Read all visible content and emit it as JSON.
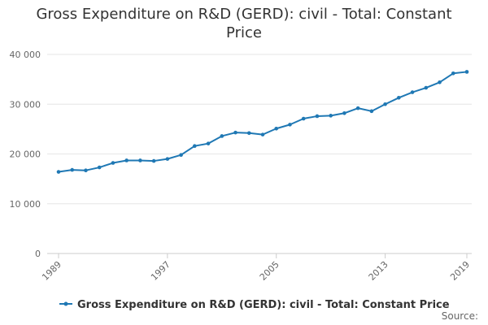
{
  "title": "Gross Expenditure on R&D (GERD): civil - Total: Constant Price",
  "source_label": "Source:",
  "chart_data": {
    "type": "line",
    "title": "Gross Expenditure on R&D (GERD): civil - Total: Constant Price",
    "xlabel": "",
    "ylabel": "",
    "x": [
      1989,
      1990,
      1991,
      1992,
      1993,
      1994,
      1995,
      1996,
      1997,
      1998,
      1999,
      2000,
      2001,
      2002,
      2003,
      2004,
      2005,
      2006,
      2007,
      2008,
      2009,
      2010,
      2011,
      2012,
      2013,
      2014,
      2015,
      2016,
      2017,
      2018,
      2019
    ],
    "x_ticks": [
      1989,
      1997,
      2005,
      2013,
      2019
    ],
    "x_tick_labels": [
      "1989",
      "1997",
      "2005",
      "2013",
      "2019"
    ],
    "xlim": [
      1989,
      2019
    ],
    "ylim": [
      0,
      40000
    ],
    "y_ticks": [
      0,
      10000,
      20000,
      30000,
      40000
    ],
    "y_tick_labels": [
      "0",
      "10 000",
      "20 000",
      "30 000",
      "40 000"
    ],
    "grid": "horizontal",
    "legend_position": "bottom",
    "series": [
      {
        "name": "Gross Expenditure on R&D (GERD): civil - Total: Constant Price",
        "color": "#1f78b4",
        "values": [
          16400,
          16800,
          16700,
          17300,
          18200,
          18700,
          18700,
          18600,
          19000,
          19800,
          21600,
          22100,
          23600,
          24300,
          24200,
          23900,
          25100,
          25900,
          27100,
          27600,
          27700,
          28200,
          29200,
          28600,
          30000,
          31300,
          32400,
          33300,
          34400,
          36200,
          36500
        ]
      }
    ]
  }
}
